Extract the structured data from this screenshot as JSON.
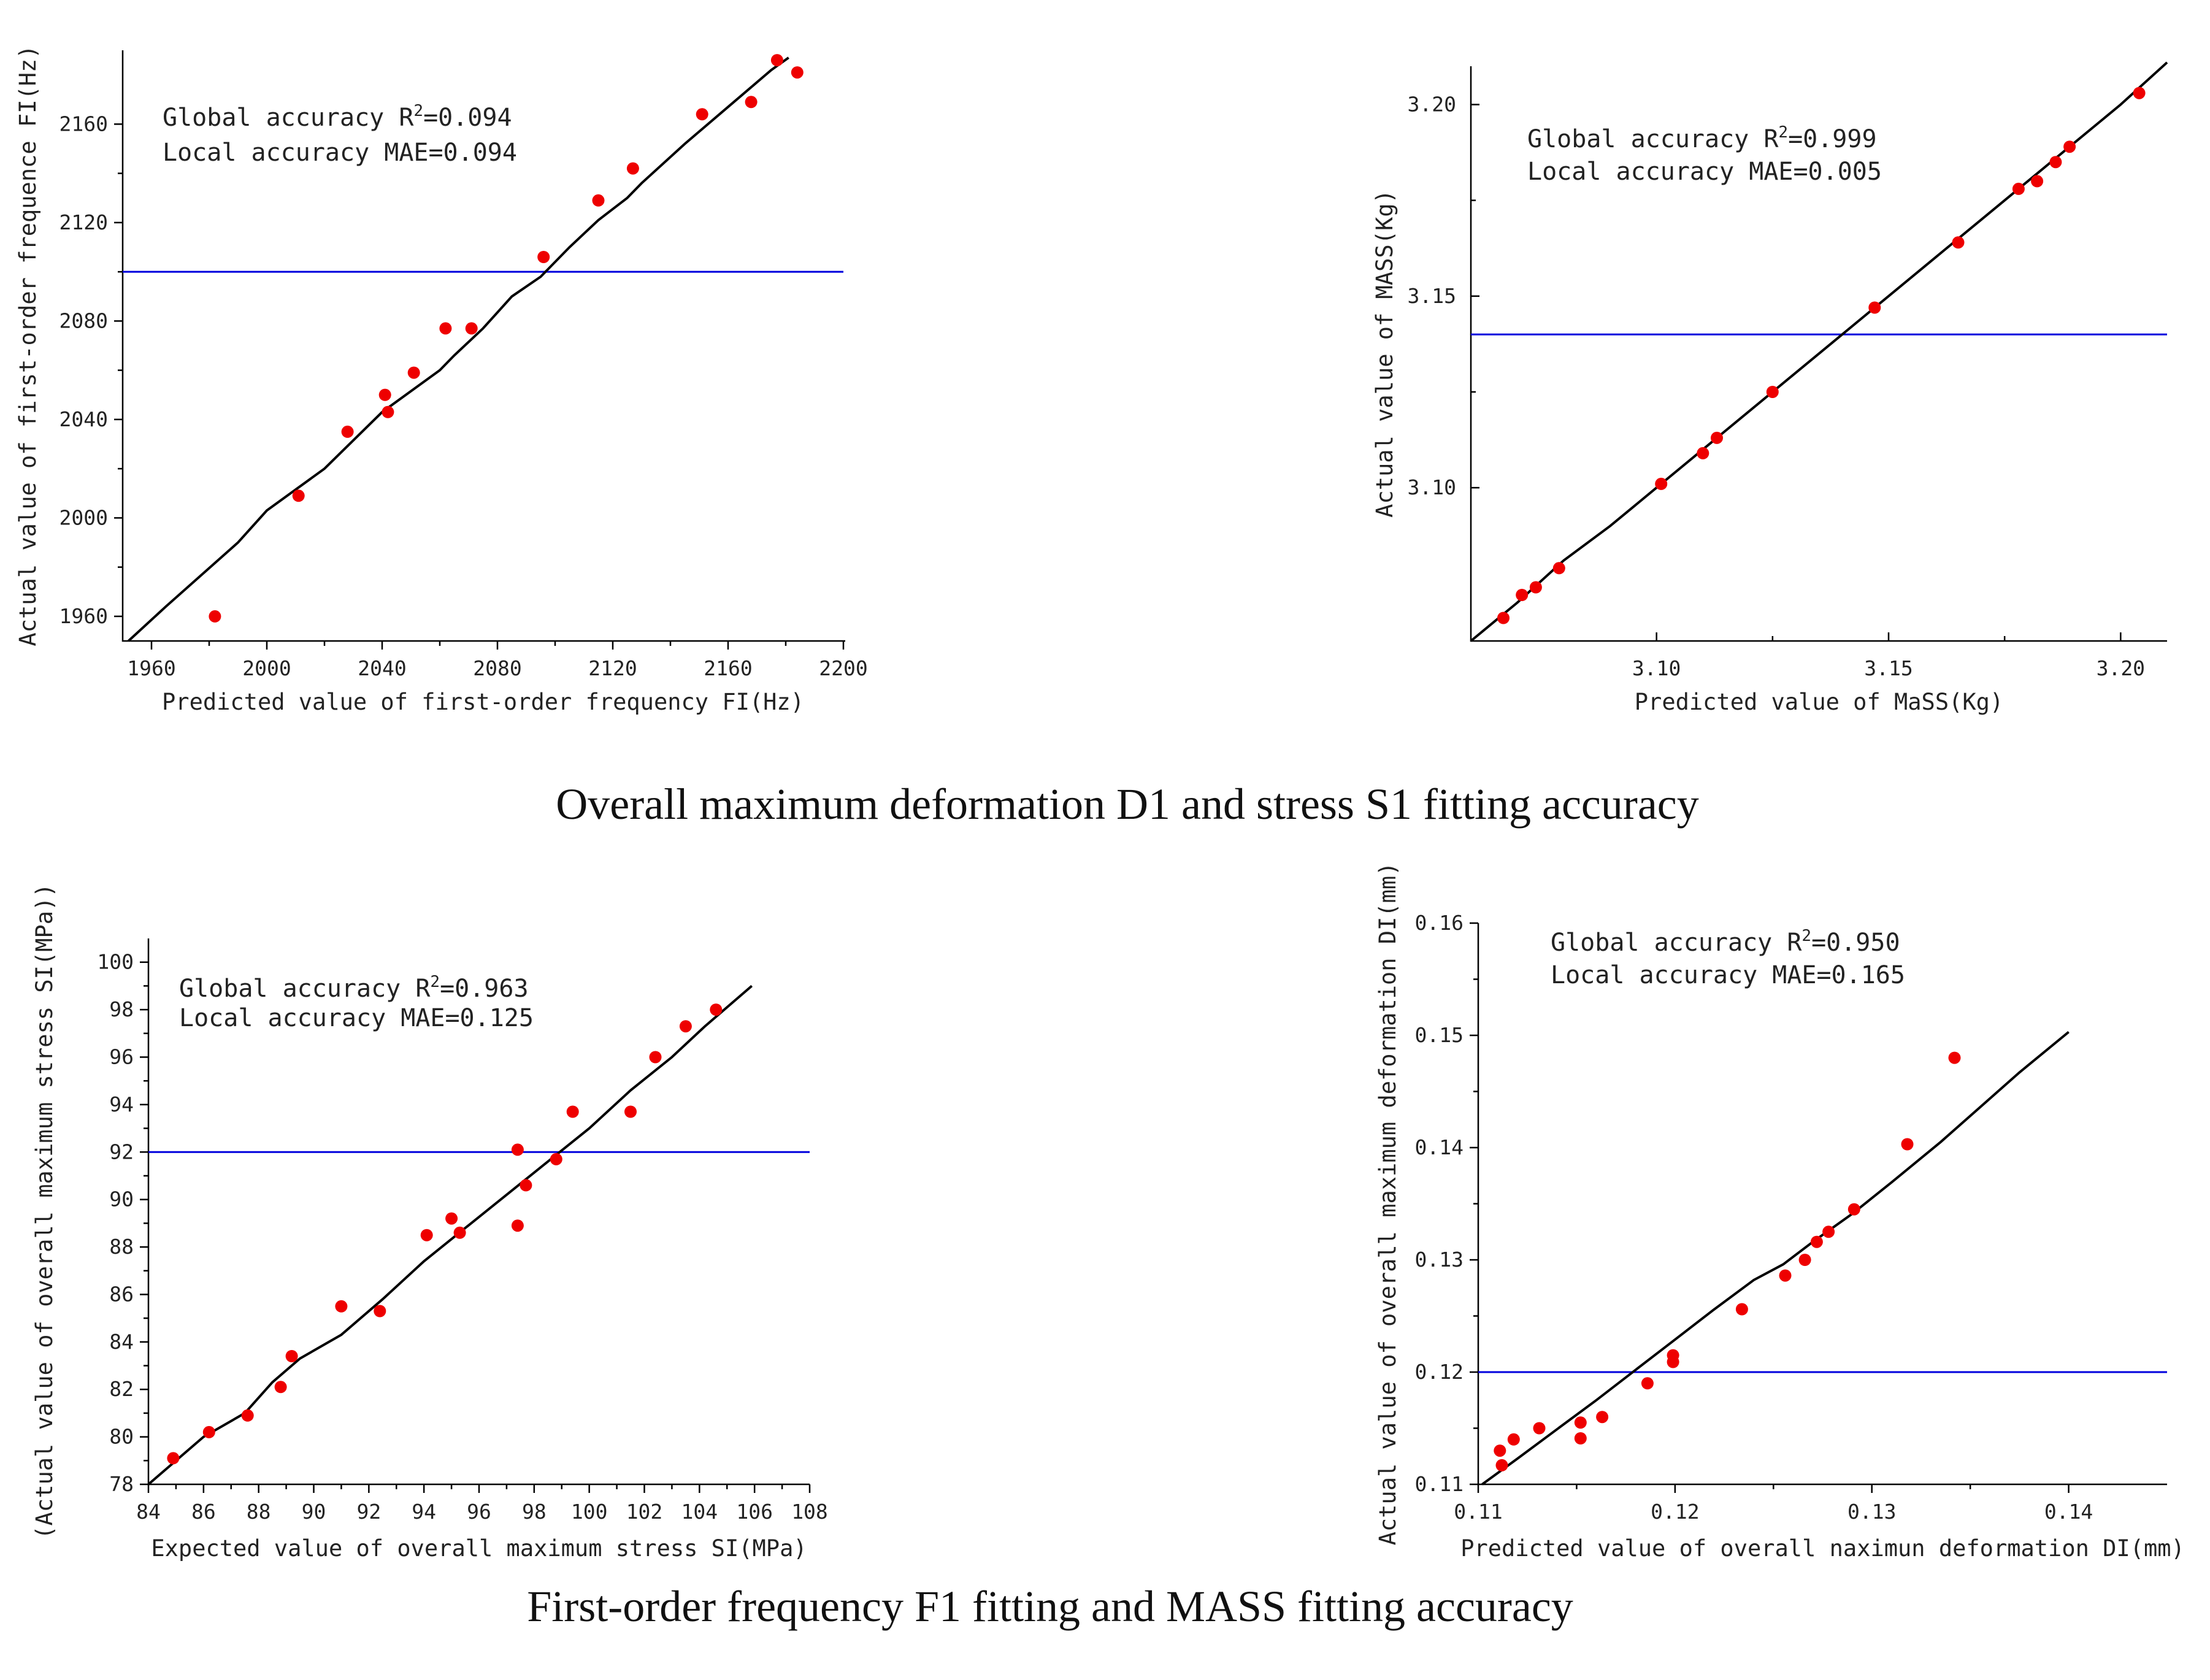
{
  "figure": {
    "caption_top": "Overall maximum deformation D1 and stress S1 fitting accuracy",
    "caption_bottom": "First-order frequency F1 fitting and MASS fitting accuracy",
    "colors": {
      "points": "#ee0000",
      "line": "#000000",
      "hline": "#0000dd"
    }
  },
  "chart_data": [
    {
      "id": "freq",
      "type": "scatter",
      "xlabel": "Predicted value of first-order frequency FI(Hz)",
      "ylabel": "Actual value of first-order frequence FI(Hz)",
      "xlim": [
        1950,
        2200
      ],
      "ylim": [
        1950,
        2190
      ],
      "xticks": [
        1960,
        2000,
        2040,
        2080,
        2120,
        2160,
        2200
      ],
      "yticks": [
        1960,
        2000,
        2040,
        2080,
        2120,
        2160
      ],
      "tick_labels_x": [
        "1960",
        "2000",
        "2040",
        "2080",
        "2120",
        "2160",
        "2200"
      ],
      "tick_labels_y": [
        "1960",
        "2000",
        "2040",
        "2080",
        "2120",
        "2160"
      ],
      "annotation": {
        "r2_prefix": "Global accuracy R",
        "r2_sup": "2",
        "r2_value": "=0.094",
        "mae": "Local accuracy MAE=0.094"
      },
      "hline": 2100,
      "fit_line": [
        [
          1952,
          1950
        ],
        [
          1965,
          1964
        ],
        [
          1990,
          1990
        ],
        [
          2000,
          2003
        ],
        [
          2020,
          2020
        ],
        [
          2040,
          2043
        ],
        [
          2060,
          2060
        ],
        [
          2065,
          2066
        ],
        [
          2075,
          2077
        ],
        [
          2085,
          2090
        ],
        [
          2095,
          2098
        ],
        [
          2105,
          2110
        ],
        [
          2115,
          2121
        ],
        [
          2125,
          2130
        ],
        [
          2130,
          2136
        ],
        [
          2145,
          2152
        ],
        [
          2160,
          2167
        ],
        [
          2175,
          2182
        ],
        [
          2181,
          2187
        ]
      ],
      "points": [
        [
          1982,
          1960
        ],
        [
          2011,
          2009
        ],
        [
          2028,
          2035
        ],
        [
          2041,
          2050
        ],
        [
          2042,
          2043
        ],
        [
          2051,
          2059
        ],
        [
          2062,
          2077
        ],
        [
          2071,
          2077
        ],
        [
          2096,
          2106
        ],
        [
          2115,
          2129
        ],
        [
          2127,
          2142
        ],
        [
          2151,
          2164
        ],
        [
          2168,
          2169
        ],
        [
          2177,
          2186
        ],
        [
          2184,
          2181
        ]
      ]
    },
    {
      "id": "mass",
      "type": "scatter",
      "xlabel": "Predicted value of MaSS(Kg)",
      "ylabel": "Actual value of MASS(Kg)",
      "xlim": [
        3.06,
        3.21
      ],
      "ylim": [
        3.06,
        3.21
      ],
      "xticks": [
        3.1,
        3.15,
        3.2
      ],
      "yticks": [
        3.1,
        3.15,
        3.2
      ],
      "tick_labels_x": [
        "3.10",
        "3.15",
        "3.20"
      ],
      "tick_labels_y": [
        "3.10",
        "3.15",
        "3.20"
      ],
      "annotation": {
        "r2_prefix": "Global accuracy R",
        "r2_sup": "2",
        "r2_value": "=0.999",
        "mae": "Local accuracy MAE=0.005"
      },
      "hline": 3.14,
      "fit_line": [
        [
          3.06,
          3.06
        ],
        [
          3.07,
          3.07
        ],
        [
          3.08,
          3.081
        ],
        [
          3.09,
          3.09
        ],
        [
          3.1,
          3.1
        ],
        [
          3.11,
          3.11
        ],
        [
          3.12,
          3.12
        ],
        [
          3.13,
          3.13
        ],
        [
          3.14,
          3.14
        ],
        [
          3.15,
          3.15
        ],
        [
          3.16,
          3.16
        ],
        [
          3.17,
          3.17
        ],
        [
          3.18,
          3.18
        ],
        [
          3.19,
          3.19
        ],
        [
          3.2,
          3.2
        ],
        [
          3.21,
          3.211
        ]
      ],
      "points": [
        [
          3.067,
          3.066
        ],
        [
          3.071,
          3.072
        ],
        [
          3.074,
          3.074
        ],
        [
          3.079,
          3.079
        ],
        [
          3.101,
          3.101
        ],
        [
          3.11,
          3.109
        ],
        [
          3.113,
          3.113
        ],
        [
          3.125,
          3.125
        ],
        [
          3.147,
          3.147
        ],
        [
          3.165,
          3.164
        ],
        [
          3.178,
          3.178
        ],
        [
          3.182,
          3.18
        ],
        [
          3.186,
          3.185
        ],
        [
          3.189,
          3.189
        ],
        [
          3.204,
          3.203
        ]
      ]
    },
    {
      "id": "stress",
      "type": "scatter",
      "xlabel": "Expected value of overall maximum stress SI(MPa)",
      "ylabel": "(Actual value of overall maximum stress SI(MPa))",
      "xlim": [
        84,
        108
      ],
      "ylim": [
        78,
        101
      ],
      "xticks": [
        84,
        86,
        88,
        90,
        92,
        94,
        96,
        98,
        100,
        102,
        104,
        106,
        108
      ],
      "yticks": [
        78,
        80,
        82,
        84,
        86,
        88,
        90,
        92,
        94,
        96,
        98,
        100
      ],
      "tick_labels_x": [
        "84",
        "86",
        "88",
        "90",
        "92",
        "94",
        "96",
        "98",
        "100",
        "102",
        "104",
        "106",
        "108"
      ],
      "tick_labels_y": [
        "78",
        "80",
        "82",
        "84",
        "86",
        "88",
        "90",
        "92",
        "94",
        "96",
        "98",
        "100"
      ],
      "annotation": {
        "r2_prefix": "Global accuracy R",
        "r2_sup": "2",
        "r2_value": "=0.963",
        "mae": "Local accuracy MAE=0.125"
      },
      "hline": 92,
      "fit_line": [
        [
          84.0,
          78.0
        ],
        [
          86,
          80.0
        ],
        [
          87.5,
          81.0
        ],
        [
          88.5,
          82.3
        ],
        [
          89.5,
          83.3
        ],
        [
          91,
          84.3
        ],
        [
          92.5,
          85.8
        ],
        [
          94,
          87.4
        ],
        [
          95.5,
          88.8
        ],
        [
          97,
          90.2
        ],
        [
          98.5,
          91.6
        ],
        [
          100,
          93.0
        ],
        [
          101.5,
          94.6
        ],
        [
          103,
          96.0
        ],
        [
          104.2,
          97.3
        ],
        [
          105.9,
          99.0
        ]
      ],
      "points": [
        [
          84.9,
          79.1
        ],
        [
          86.2,
          80.2
        ],
        [
          87.6,
          80.9
        ],
        [
          88.8,
          82.1
        ],
        [
          89.2,
          83.4
        ],
        [
          91.0,
          85.5
        ],
        [
          92.4,
          85.3
        ],
        [
          94.1,
          88.5
        ],
        [
          95.0,
          89.2
        ],
        [
          95.3,
          88.6
        ],
        [
          97.4,
          88.9
        ],
        [
          97.4,
          92.1
        ],
        [
          97.7,
          90.6
        ],
        [
          98.8,
          91.7
        ],
        [
          99.4,
          93.7
        ],
        [
          101.5,
          93.7
        ],
        [
          102.4,
          96.0
        ],
        [
          103.5,
          97.3
        ],
        [
          104.6,
          98.0
        ]
      ]
    },
    {
      "id": "deform",
      "type": "scatter",
      "xlabel": "Predicted value of overall naximun deformation DI(mm)",
      "ylabel": "Actual value of overall maximum deformation DI(mm)",
      "xlim": [
        0.11,
        0.145
      ],
      "ylim": [
        0.11,
        0.16
      ],
      "xticks": [
        0.11,
        0.12,
        0.13,
        0.14
      ],
      "yticks": [
        0.11,
        0.12,
        0.13,
        0.14,
        0.15,
        0.16
      ],
      "tick_labels_x": [
        "0.11",
        "0.12",
        "0.13",
        "0.14"
      ],
      "tick_labels_y": [
        "0.11",
        "0.12",
        "0.13",
        "0.14",
        "0.15",
        "0.16"
      ],
      "annotation": {
        "r2_prefix": "Global accuracy R",
        "r2_sup": "2",
        "r2_value": "=0.950",
        "mae": "Local accuracy MAE=0.165"
      },
      "hline": 0.12,
      "fit_line": [
        [
          0.1102,
          0.11
        ],
        [
          0.112,
          0.1123
        ],
        [
          0.114,
          0.1149
        ],
        [
          0.116,
          0.1175
        ],
        [
          0.118,
          0.1202
        ],
        [
          0.12,
          0.1229
        ],
        [
          0.122,
          0.1256
        ],
        [
          0.124,
          0.1282
        ],
        [
          0.1255,
          0.1296
        ],
        [
          0.127,
          0.1316
        ],
        [
          0.129,
          0.1341
        ],
        [
          0.131,
          0.1369
        ],
        [
          0.1335,
          0.1405
        ],
        [
          0.1355,
          0.1436
        ],
        [
          0.1375,
          0.1467
        ],
        [
          0.14,
          0.1503
        ]
      ],
      "points": [
        [
          0.1111,
          0.113
        ],
        [
          0.1112,
          0.1117
        ],
        [
          0.1118,
          0.114
        ],
        [
          0.1131,
          0.115
        ],
        [
          0.1152,
          0.1155
        ],
        [
          0.1152,
          0.1141
        ],
        [
          0.1163,
          0.116
        ],
        [
          0.1186,
          0.119
        ],
        [
          0.1199,
          0.1215
        ],
        [
          0.1199,
          0.1209
        ],
        [
          0.1234,
          0.1256
        ],
        [
          0.1256,
          0.1286
        ],
        [
          0.1266,
          0.13
        ],
        [
          0.1272,
          0.1316
        ],
        [
          0.1278,
          0.1325
        ],
        [
          0.1291,
          0.1345
        ],
        [
          0.1318,
          0.1403
        ],
        [
          0.1342,
          0.148
        ]
      ]
    }
  ]
}
